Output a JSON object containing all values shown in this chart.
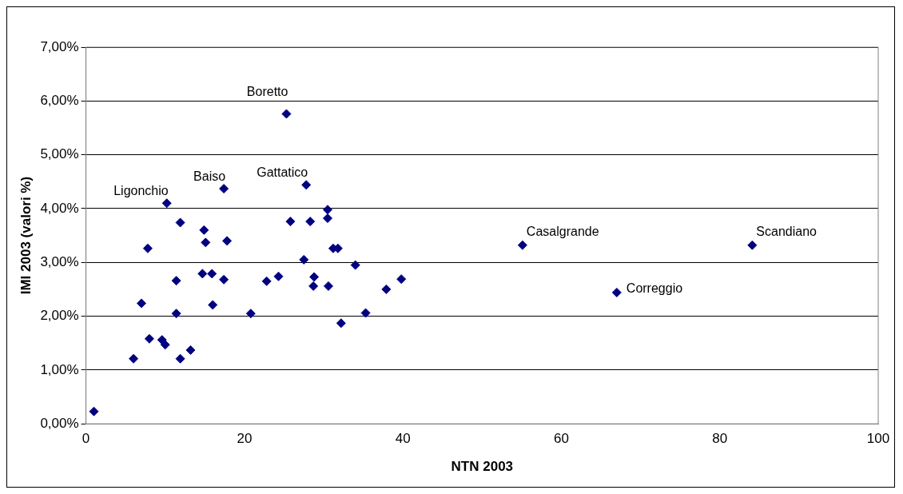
{
  "chart_data": {
    "type": "scatter",
    "xlabel": "NTN 2003",
    "ylabel": "IMI 2003 (valori %)",
    "x": [
      1.0,
      6.0,
      8.0,
      9.6,
      10.0,
      13.2,
      11.9,
      7.0,
      11.4,
      11.4,
      7.8,
      11.9,
      10.2,
      14.9,
      15.1,
      17.4,
      17.8,
      14.7,
      15.9,
      16.0,
      17.4,
      20.8,
      22.8,
      24.3,
      25.3,
      25.8,
      27.8,
      28.3,
      27.5,
      28.8,
      28.7,
      30.5,
      30.5,
      30.6,
      31.2,
      31.8,
      32.2,
      34.0,
      35.3,
      37.9,
      39.8,
      55.1,
      67.0,
      84.1
    ],
    "series": [
      {
        "color": "#000080",
        "values": [
          0.23,
          1.21,
          1.58,
          1.56,
          1.47,
          1.37,
          1.21,
          2.24,
          2.05,
          2.66,
          3.26,
          3.74,
          4.1,
          3.6,
          3.37,
          4.37,
          3.4,
          2.79,
          2.79,
          2.21,
          2.68,
          2.05,
          2.65,
          2.74,
          5.76,
          3.76,
          4.44,
          3.76,
          3.05,
          2.73,
          2.56,
          3.98,
          3.82,
          2.56,
          3.26,
          3.26,
          1.87,
          2.95,
          2.06,
          2.5,
          2.69,
          3.32,
          2.44,
          3.32
        ]
      }
    ],
    "marker": "diamond",
    "grid": "y",
    "legend": false,
    "xlim": [
      0,
      100
    ],
    "xticks": [
      0,
      20,
      40,
      60,
      80,
      100
    ],
    "ylim": [
      0,
      7
    ],
    "yticks": [
      {
        "value": 0,
        "label": "0,00%"
      },
      {
        "value": 1,
        "label": "1,00%"
      },
      {
        "value": 2,
        "label": "2,00%"
      },
      {
        "value": 3,
        "label": "3,00%"
      },
      {
        "value": 4,
        "label": "4,00%"
      },
      {
        "value": 5,
        "label": "5,00%"
      },
      {
        "value": 6,
        "label": "6,00%"
      },
      {
        "value": 7,
        "label": "7,00%"
      }
    ],
    "annotations": [
      {
        "text": "Ligonchio",
        "x": 10.2,
        "y": 4.1
      },
      {
        "text": "Baiso",
        "x": 17.4,
        "y": 4.37
      },
      {
        "text": "Boretto",
        "x": 25.3,
        "y": 5.76
      },
      {
        "text": "Gattatico",
        "x": 27.8,
        "y": 4.44
      },
      {
        "text": "Casalgrande",
        "x": 55.1,
        "y": 3.32
      },
      {
        "text": "Correggio",
        "x": 67.0,
        "y": 2.44
      },
      {
        "text": "Scandiano",
        "x": 84.1,
        "y": 3.32
      }
    ]
  }
}
